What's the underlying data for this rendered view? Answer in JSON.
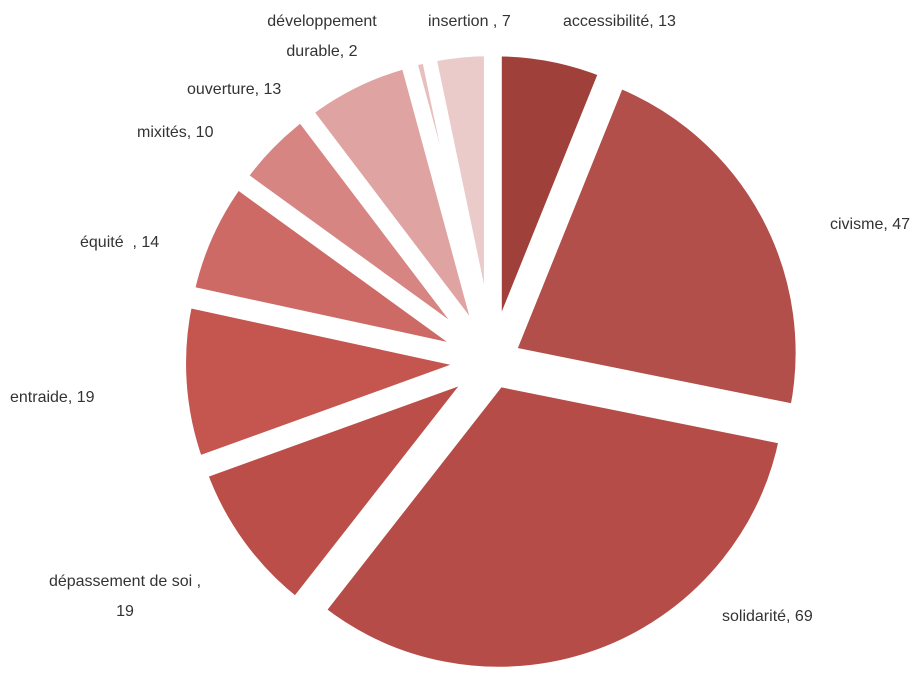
{
  "chart_data": {
    "type": "pie",
    "labels": [
      [
        "accessibilité, 13"
      ],
      [
        "civisme, 47"
      ],
      [
        "solidarité, 69"
      ],
      [
        "dépassement de soi ,",
        "19"
      ],
      [
        "entraide, 19"
      ],
      [
        "équité  , 14"
      ],
      [
        "mixités, 10"
      ],
      [
        "ouverture, 13"
      ],
      [
        "développement",
        "durable, 2"
      ],
      [
        "insertion , 7"
      ]
    ],
    "values": [
      13,
      47,
      69,
      19,
      19,
      14,
      10,
      13,
      2,
      7
    ],
    "colors": [
      "#a0403b",
      "#b24f4a",
      "#b54c48",
      "#bb4e48",
      "#c4554f",
      "#cd6a66",
      "#d78582",
      "#dfa3a2",
      "#e8bfbf",
      "#ebcaca"
    ],
    "exploded": true
  }
}
